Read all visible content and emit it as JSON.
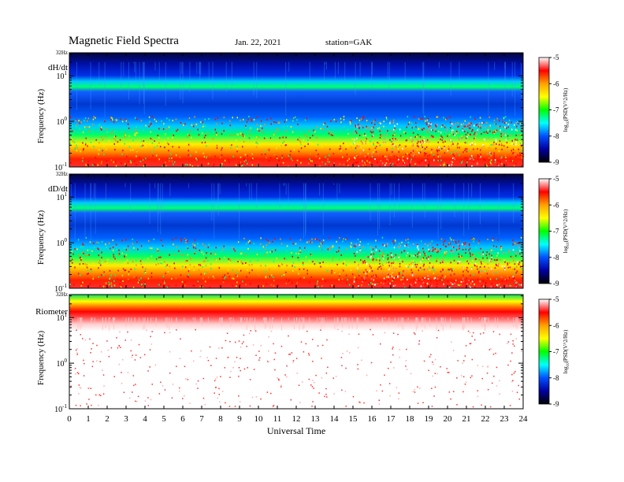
{
  "header": {
    "title": "Magnetic Field Spectra",
    "date": "Jan. 22, 2021",
    "station": "station=GAK"
  },
  "chart_data": {
    "type": "heatmap",
    "xlabel": "Universal Time",
    "xlim": [
      0,
      24
    ],
    "x_ticks": [
      "0",
      "1",
      "2",
      "3",
      "4",
      "5",
      "6",
      "7",
      "8",
      "9",
      "10",
      "11",
      "12",
      "13",
      "14",
      "15",
      "16",
      "17",
      "18",
      "19",
      "20",
      "21",
      "22",
      "23",
      "24"
    ],
    "ylabel": "Frequency (Hz)",
    "y_scale": "log",
    "ylim": [
      0.1,
      32
    ],
    "y_top_label": "32Hz",
    "y_ticks": [
      {
        "base": "10",
        "exp": "1",
        "value": 10
      },
      {
        "base": "10",
        "exp": "0",
        "value": 1
      },
      {
        "base": "10",
        "exp": "-1",
        "value": 0.1
      }
    ],
    "colorbar": {
      "label_base": "log",
      "label_sub": "10",
      "label_rest": "(PSD(V^2/Hz)",
      "range": [
        -9,
        -5
      ],
      "ticks": [
        "-5",
        "-6",
        "-7",
        "-8",
        "-9"
      ],
      "colors": [
        "#ffffff",
        "#ff0000",
        "#ffa000",
        "#ffff00",
        "#00ff00",
        "#00ffff",
        "#0050ff",
        "#0000a0",
        "#000000"
      ]
    },
    "panels": [
      {
        "label": "dH/dt"
      },
      {
        "label": "dD/dt"
      },
      {
        "label": "Riometer"
      }
    ]
  }
}
